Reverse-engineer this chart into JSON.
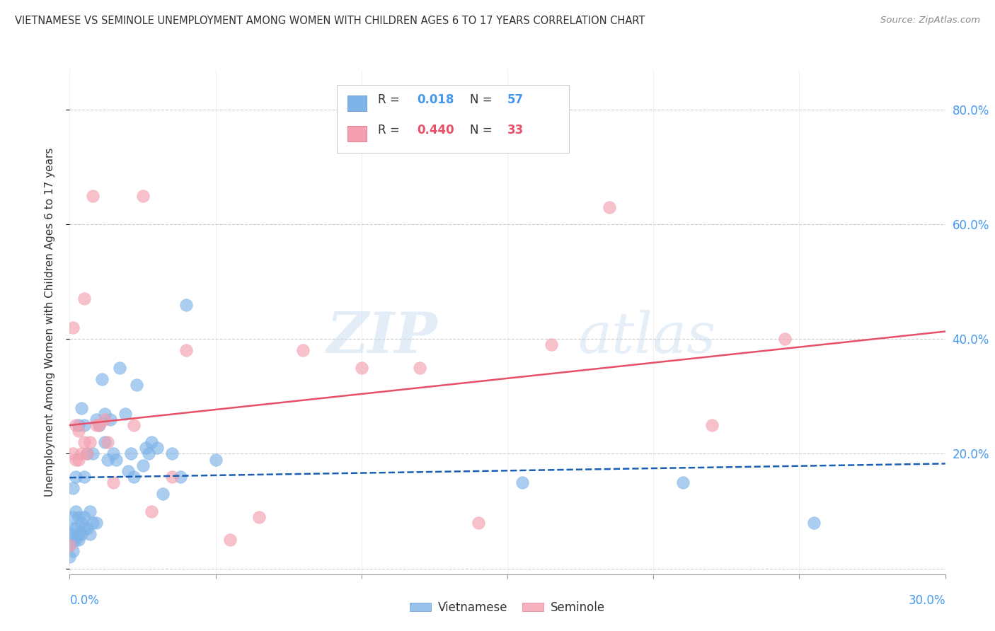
{
  "title": "VIETNAMESE VS SEMINOLE UNEMPLOYMENT AMONG WOMEN WITH CHILDREN AGES 6 TO 17 YEARS CORRELATION CHART",
  "source": "Source: ZipAtlas.com",
  "ylabel": "Unemployment Among Women with Children Ages 6 to 17 years",
  "xlim": [
    0.0,
    0.3
  ],
  "ylim": [
    -0.01,
    0.87
  ],
  "yticks": [
    0.0,
    0.2,
    0.4,
    0.6,
    0.8
  ],
  "color_vietnamese": "#7EB3E8",
  "color_seminole": "#F4A0B0",
  "color_line_vietnamese": "#1A5FB4",
  "color_line_seminole": "#E8506A",
  "color_axis_labels": "#4499EE",
  "color_grid": "#CCCCCC",
  "watermark_top": "ZIP",
  "watermark_bot": "atlas",
  "vietnamese_x": [
    0.0,
    0.0,
    0.0,
    0.001,
    0.001,
    0.001,
    0.001,
    0.001,
    0.002,
    0.002,
    0.002,
    0.002,
    0.003,
    0.003,
    0.003,
    0.003,
    0.004,
    0.004,
    0.004,
    0.005,
    0.005,
    0.005,
    0.005,
    0.006,
    0.006,
    0.007,
    0.007,
    0.008,
    0.008,
    0.009,
    0.009,
    0.01,
    0.011,
    0.012,
    0.012,
    0.013,
    0.014,
    0.015,
    0.016,
    0.017,
    0.019,
    0.02,
    0.021,
    0.022,
    0.023,
    0.025,
    0.026,
    0.027,
    0.028,
    0.03,
    0.032,
    0.035,
    0.038,
    0.04,
    0.05,
    0.155,
    0.21,
    0.255
  ],
  "vietnamese_y": [
    0.02,
    0.04,
    0.06,
    0.03,
    0.05,
    0.07,
    0.09,
    0.14,
    0.05,
    0.07,
    0.1,
    0.16,
    0.05,
    0.06,
    0.09,
    0.25,
    0.06,
    0.08,
    0.28,
    0.07,
    0.09,
    0.16,
    0.25,
    0.07,
    0.2,
    0.06,
    0.1,
    0.08,
    0.2,
    0.08,
    0.26,
    0.25,
    0.33,
    0.22,
    0.27,
    0.19,
    0.26,
    0.2,
    0.19,
    0.35,
    0.27,
    0.17,
    0.2,
    0.16,
    0.32,
    0.18,
    0.21,
    0.2,
    0.22,
    0.21,
    0.13,
    0.2,
    0.16,
    0.46,
    0.19,
    0.15,
    0.15,
    0.08
  ],
  "seminole_x": [
    0.0,
    0.001,
    0.001,
    0.002,
    0.002,
    0.003,
    0.003,
    0.004,
    0.005,
    0.005,
    0.006,
    0.007,
    0.008,
    0.009,
    0.01,
    0.012,
    0.013,
    0.015,
    0.022,
    0.025,
    0.028,
    0.035,
    0.04,
    0.055,
    0.065,
    0.08,
    0.1,
    0.12,
    0.14,
    0.165,
    0.185,
    0.22,
    0.245
  ],
  "seminole_y": [
    0.04,
    0.2,
    0.42,
    0.19,
    0.25,
    0.19,
    0.24,
    0.2,
    0.22,
    0.47,
    0.2,
    0.22,
    0.65,
    0.25,
    0.25,
    0.26,
    0.22,
    0.15,
    0.25,
    0.65,
    0.1,
    0.16,
    0.38,
    0.05,
    0.09,
    0.38,
    0.35,
    0.35,
    0.08,
    0.39,
    0.63,
    0.25,
    0.4
  ]
}
